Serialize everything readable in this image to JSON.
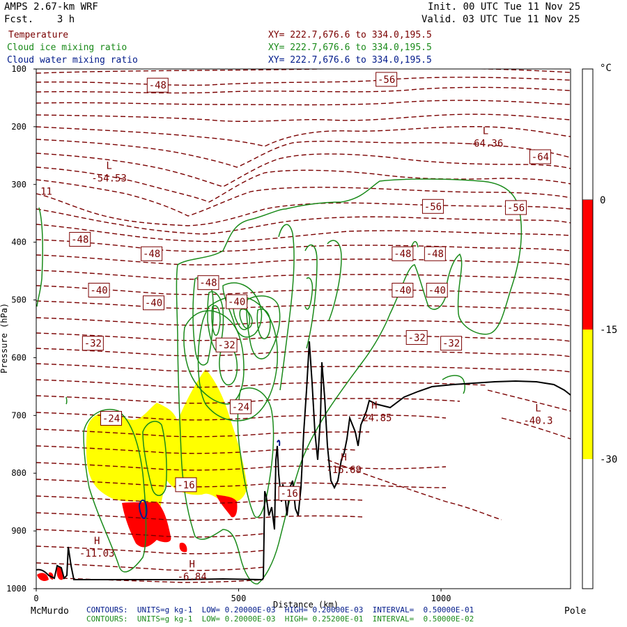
{
  "header": {
    "model": "AMPS 2.67-km WRF",
    "fcst": "Fcst.    3 h",
    "init": "Init. 00 UTC Tue 11 Nov 25",
    "valid": "Valid. 03 UTC Tue 11 Nov 25"
  },
  "fields": [
    {
      "name": "Temperature",
      "xy": "XY= 222.7,676.6 to 334.0,195.5",
      "color": "#7a0000"
    },
    {
      "name": "Cloud ice mixing ratio",
      "xy": "XY= 222.7,676.6 to 334.0,195.5",
      "color": "#1a8a1a"
    },
    {
      "name": "Cloud water mixing ratio",
      "xy": "XY= 222.7,676.6 to 334.0,195.5",
      "color": "#001a8a"
    }
  ],
  "footer": {
    "left_end": "McMurdo",
    "right_end": "Pole",
    "distance_label": "Distance (km)",
    "contours_1": "CONTOURS:  UNITS=g kg-1  LOW= 0.20000E-03  HIGH= 0.20000E-03  INTERVAL=  0.50000E-01",
    "contours_2": "CONTOURS:  UNITS=g kg-1  LOW= 0.20000E-03  HIGH= 0.25200E-01  INTERVAL=  0.50000E-02"
  },
  "colorbar": {
    "unit": "°C",
    "ticks": [
      "0",
      "-15",
      "-30"
    ],
    "colors": [
      "#ff0000",
      "#ffff00",
      "#ffffff"
    ]
  },
  "chart_data": {
    "type": "cross-section",
    "xlabel": "Distance (km)",
    "ylabel": "Pressure (hPa)",
    "xlim": [
      0,
      1320
    ],
    "ylim": [
      1000,
      100
    ],
    "x_ticks": [
      0,
      500,
      1000
    ],
    "y_ticks": [
      100,
      200,
      300,
      400,
      500,
      600,
      700,
      800,
      900,
      1000
    ],
    "temperature_labels": [
      {
        "text": "-48",
        "x": 300,
        "p": 128
      },
      {
        "text": "-56",
        "x": 865,
        "p": 118
      },
      {
        "text": "-64",
        "x": 1245,
        "p": 252
      },
      {
        "text": "-56",
        "x": 980,
        "p": 338
      },
      {
        "text": "-56",
        "x": 1185,
        "p": 340
      },
      {
        "text": "-48",
        "x": 108,
        "p": 395
      },
      {
        "text": "-48",
        "x": 285,
        "p": 420
      },
      {
        "text": "-48",
        "x": 425,
        "p": 470
      },
      {
        "text": "-48",
        "x": 905,
        "p": 420
      },
      {
        "text": "-48",
        "x": 985,
        "p": 420
      },
      {
        "text": "-40",
        "x": 155,
        "p": 483
      },
      {
        "text": "-40",
        "x": 290,
        "p": 505
      },
      {
        "text": "-40",
        "x": 495,
        "p": 503
      },
      {
        "text": "-40",
        "x": 905,
        "p": 483
      },
      {
        "text": "-40",
        "x": 990,
        "p": 483
      },
      {
        "text": "-32",
        "x": 140,
        "p": 575
      },
      {
        "text": "-32",
        "x": 470,
        "p": 578
      },
      {
        "text": "-32",
        "x": 940,
        "p": 565
      },
      {
        "text": "-32",
        "x": 1025,
        "p": 575
      },
      {
        "text": "-24",
        "x": 185,
        "p": 705
      },
      {
        "text": "-24",
        "x": 505,
        "p": 685
      },
      {
        "text": "-16",
        "x": 370,
        "p": 820
      },
      {
        "text": "-16",
        "x": 625,
        "p": 835
      }
    ],
    "extrema": [
      {
        "kind": "L",
        "value": "-54.53",
        "x": 180,
        "p": 285
      },
      {
        "kind": "L",
        "value": "-64.36",
        "x": 1110,
        "p": 225
      },
      {
        "kind": "L",
        "value": "-40.3",
        "x": 1240,
        "p": 705
      },
      {
        "kind": "H",
        "value": "-24.85",
        "x": 835,
        "p": 700
      },
      {
        "kind": "H",
        "value": "-16.69",
        "x": 760,
        "p": 790
      },
      {
        "kind": "H",
        "value": "-11.03",
        "x": 150,
        "p": 935
      },
      {
        "kind": "H",
        "value": "-6.84",
        "x": 385,
        "p": 975
      },
      {
        "kind": "",
        "value": "11",
        "x": 25,
        "p": 308
      }
    ],
    "grid": false
  }
}
